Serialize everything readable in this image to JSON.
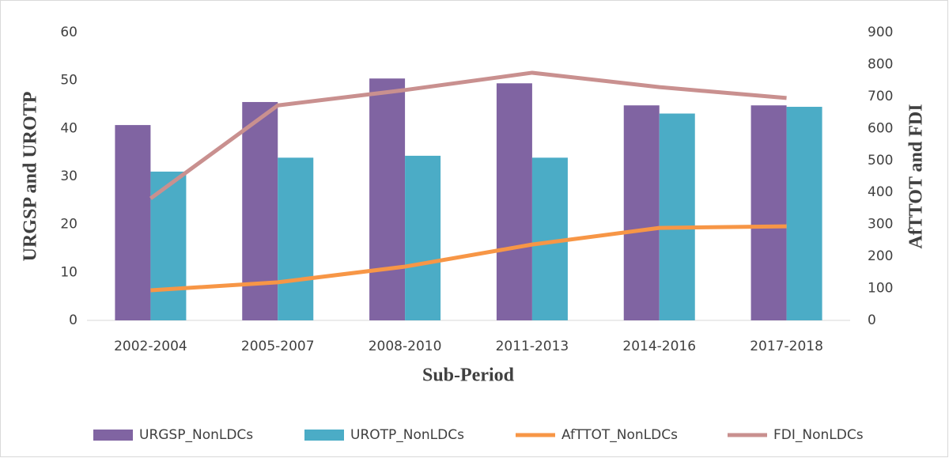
{
  "chart_data": {
    "type": "bar_line",
    "categories": [
      "2002-2004",
      "2005-2007",
      "2008-2010",
      "2011-2013",
      "2014-2016",
      "2017-2018"
    ],
    "xlabel": "Sub-Period",
    "ylabel": "URGSP and UROTP",
    "y2label": "AfTTOT and FDI",
    "ylim": [
      0,
      60
    ],
    "yticks": [
      0,
      10,
      20,
      30,
      40,
      50,
      60
    ],
    "y2lim": [
      0,
      900
    ],
    "y2ticks": [
      0,
      100,
      200,
      300,
      400,
      500,
      600,
      700,
      800,
      900
    ],
    "series": [
      {
        "name": "URGSP_NonLDCs",
        "type": "bar",
        "color": "#8064a2",
        "values": [
          40.7,
          45.5,
          50.4,
          49.4,
          44.8,
          44.8
        ]
      },
      {
        "name": "UROTP_NonLDCs",
        "type": "bar",
        "color": "#4bacc6",
        "values": [
          31.0,
          33.9,
          34.3,
          33.9,
          43.1,
          44.5
        ]
      },
      {
        "name": "AfTTOT_NonLDCs",
        "type": "line",
        "axis": "y2",
        "color": "#f79646",
        "values": [
          94,
          119,
          168,
          237,
          289,
          294
        ]
      },
      {
        "name": "FDI_NonLDCs",
        "type": "line",
        "axis": "y2",
        "color": "#c9908f",
        "values": [
          381,
          672,
          720,
          774,
          729,
          695
        ]
      }
    ]
  }
}
